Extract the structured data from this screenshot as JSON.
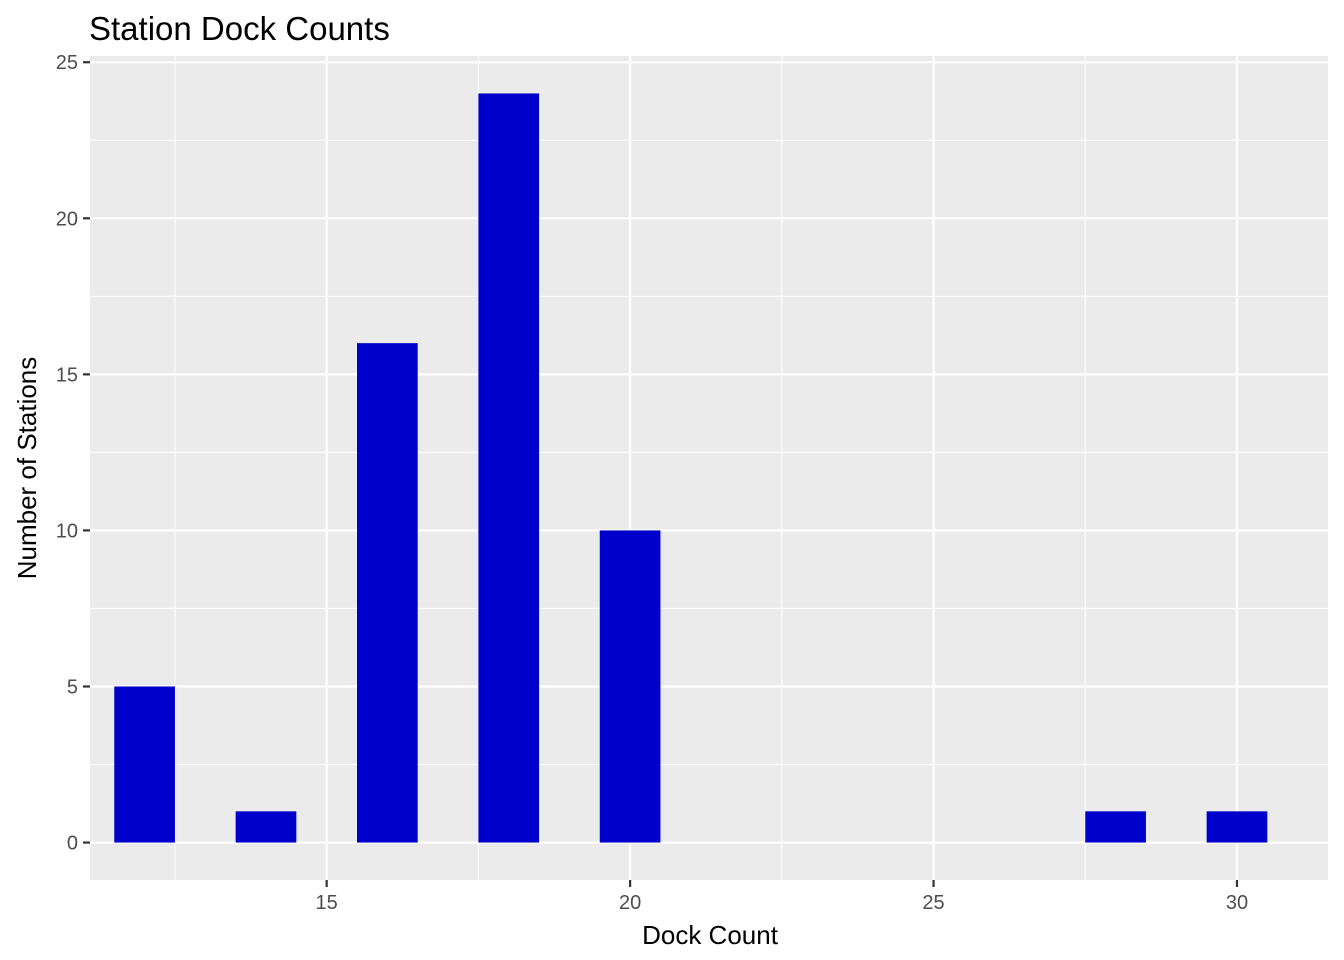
{
  "chart_data": {
    "type": "bar",
    "title": "Station Dock Counts",
    "xlabel": "Dock Count",
    "ylabel": "Number of Stations",
    "x": [
      12,
      14,
      16,
      18,
      20,
      28,
      30
    ],
    "values": [
      5,
      1,
      16,
      24,
      10,
      1,
      1
    ],
    "bar_width": 1,
    "xlim": [
      11.1,
      31.5
    ],
    "ylim": [
      -1.2,
      25.2
    ],
    "x_ticks": [
      15,
      20,
      25,
      30
    ],
    "x_minor_ticks": [
      12.5,
      17.5,
      22.5,
      27.5
    ],
    "y_ticks": [
      0,
      5,
      10,
      15,
      20,
      25
    ],
    "y_minor_ticks": [
      2.5,
      7.5,
      12.5,
      17.5,
      22.5
    ],
    "grid": true,
    "colors": {
      "bar": "#0000CD",
      "panel": "#EBEBEB",
      "grid": "#FFFFFF"
    }
  }
}
